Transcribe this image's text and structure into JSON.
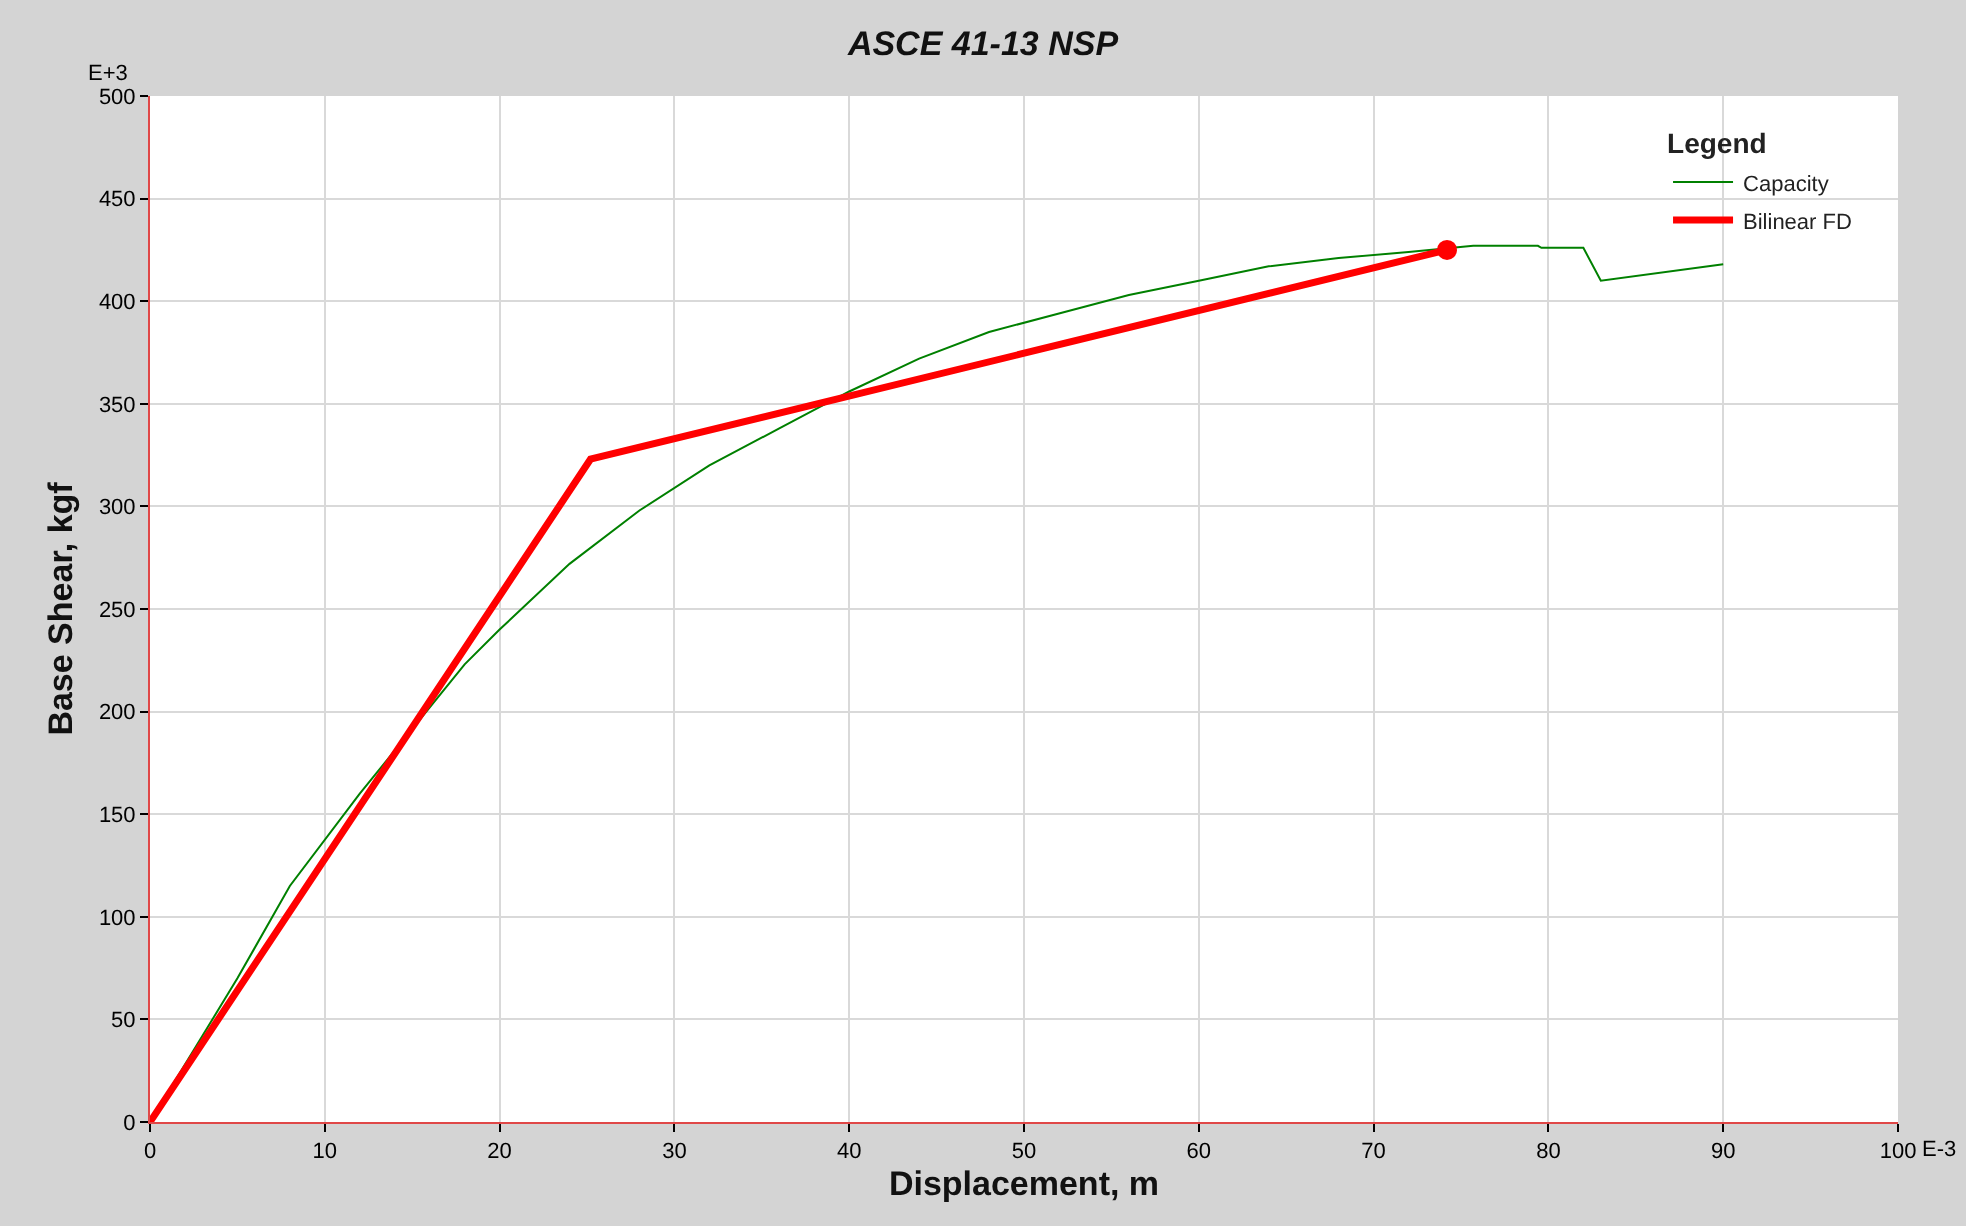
{
  "chart_data": {
    "type": "line",
    "title": "ASCE 41-13 NSP",
    "xlabel": "Displacement, m",
    "ylabel": "Base Shear, kgf",
    "legend_title": "Legend",
    "annotations": [
      "E+3",
      "E-3"
    ],
    "series": [
      {
        "name": "Capacity",
        "color": "#008000",
        "x": [
          0,
          5,
          8,
          12,
          18,
          20,
          24,
          28,
          32,
          36,
          40,
          44,
          48,
          52,
          56,
          60,
          64,
          68,
          72,
          75.7,
          79.4,
          79.6,
          82,
          83,
          90
        ],
        "values": [
          0,
          70,
          115,
          160,
          223,
          240,
          272,
          298,
          320,
          338,
          356,
          372,
          385,
          394,
          403,
          410,
          417,
          421,
          424,
          427,
          427,
          426,
          426,
          410,
          418
        ]
      },
      {
        "name": "Bilinear FD",
        "color": "#ff0000",
        "x": [
          0,
          25.2,
          74.2
        ],
        "values": [
          0,
          323,
          425
        ]
      },
      {
        "type": "scatter",
        "color": "#ff0000",
        "x": [
          74.2
        ],
        "values": [
          425
        ]
      }
    ],
    "xlim": [
      0,
      100
    ],
    "xticks": [
      0,
      10,
      20,
      30,
      40,
      50,
      60,
      70,
      80,
      90,
      100
    ],
    "ylim": [
      0,
      500
    ],
    "yticks": [
      0,
      50,
      100,
      150,
      200,
      250,
      300,
      350,
      400,
      450,
      500
    ],
    "grid": true,
    "legend": "top right"
  }
}
